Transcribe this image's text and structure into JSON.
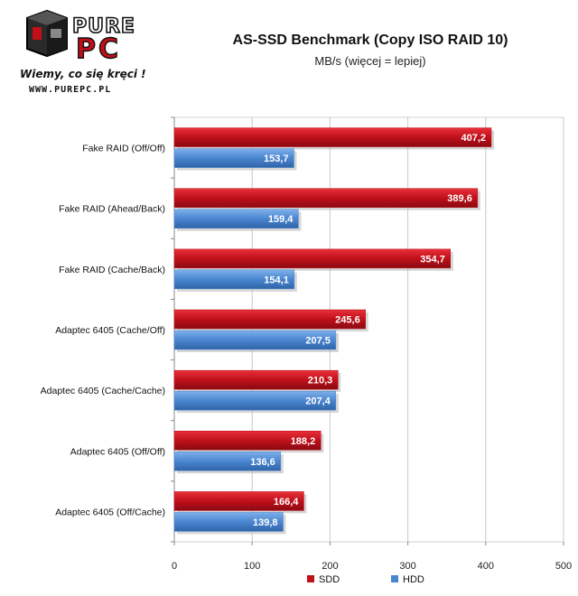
{
  "logo": {
    "brand_top": "PURE",
    "brand_bottom": "PC",
    "slogan": "Wiemy, co się kręci !",
    "url": "WWW.PUREPC.PL"
  },
  "chart_data": {
    "type": "bar",
    "orientation": "horizontal",
    "title": "AS-SSD Benchmark (Copy ISO RAID 10)",
    "subtitle": "MB/s (więcej = lepiej)",
    "categories": [
      "Fake RAID (Off/Off)",
      "Fake RAID (Ahead/Back)",
      "Fake RAID (Cache/Back)",
      "Adaptec 6405  (Cache/Off)",
      "Adaptec 6405  (Cache/Cache)",
      "Adaptec 6405  (Off/Off)",
      "Adaptec 6405  (Off/Cache)"
    ],
    "series": [
      {
        "name": "SDD",
        "color": "#c0101a",
        "values": [
          407.2,
          389.6,
          354.7,
          245.6,
          210.3,
          188.2,
          166.4
        ],
        "labels": [
          "407,2",
          "389,6",
          "354,7",
          "245,6",
          "210,3",
          "188,2",
          "166,4"
        ]
      },
      {
        "name": "HDD",
        "color": "#4a86d0",
        "values": [
          153.7,
          159.4,
          154.1,
          207.5,
          207.4,
          136.6,
          139.8
        ],
        "labels": [
          "153,7",
          "159,4",
          "154,1",
          "207,5",
          "207,4",
          "136,6",
          "139,8"
        ]
      }
    ],
    "xlim": [
      0,
      500
    ],
    "xticks": [
      0,
      100,
      200,
      300,
      400,
      500
    ],
    "grid": true,
    "legend": "bottom"
  }
}
